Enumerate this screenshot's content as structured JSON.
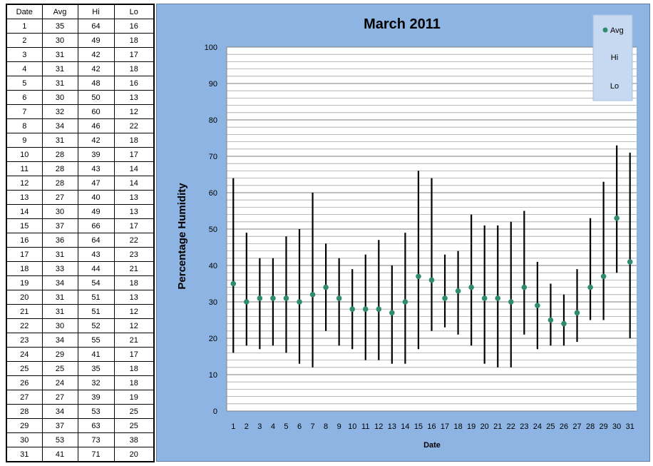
{
  "table": {
    "headers": [
      "Date",
      "Avg",
      "Hi",
      "Lo"
    ],
    "rows": [
      [
        "1",
        "35",
        "64",
        "16"
      ],
      [
        "2",
        "30",
        "49",
        "18"
      ],
      [
        "3",
        "31",
        "42",
        "17"
      ],
      [
        "4",
        "31",
        "42",
        "18"
      ],
      [
        "5",
        "31",
        "48",
        "16"
      ],
      [
        "6",
        "30",
        "50",
        "13"
      ],
      [
        "7",
        "32",
        "60",
        "12"
      ],
      [
        "8",
        "34",
        "46",
        "22"
      ],
      [
        "9",
        "31",
        "42",
        "18"
      ],
      [
        "10",
        "28",
        "39",
        "17"
      ],
      [
        "11",
        "28",
        "43",
        "14"
      ],
      [
        "12",
        "28",
        "47",
        "14"
      ],
      [
        "13",
        "27",
        "40",
        "13"
      ],
      [
        "14",
        "30",
        "49",
        "13"
      ],
      [
        "15",
        "37",
        "66",
        "17"
      ],
      [
        "16",
        "36",
        "64",
        "22"
      ],
      [
        "17",
        "31",
        "43",
        "23"
      ],
      [
        "18",
        "33",
        "44",
        "21"
      ],
      [
        "19",
        "34",
        "54",
        "18"
      ],
      [
        "20",
        "31",
        "51",
        "13"
      ],
      [
        "21",
        "31",
        "51",
        "12"
      ],
      [
        "22",
        "30",
        "52",
        "12"
      ],
      [
        "23",
        "34",
        "55",
        "21"
      ],
      [
        "24",
        "29",
        "41",
        "17"
      ],
      [
        "25",
        "25",
        "35",
        "18"
      ],
      [
        "26",
        "24",
        "32",
        "18"
      ],
      [
        "27",
        "27",
        "39",
        "19"
      ],
      [
        "28",
        "34",
        "53",
        "25"
      ],
      [
        "29",
        "37",
        "63",
        "25"
      ],
      [
        "30",
        "53",
        "73",
        "38"
      ],
      [
        "31",
        "41",
        "71",
        "20"
      ]
    ]
  },
  "chart_data": {
    "type": "scatter",
    "title": "March 2011",
    "xlabel": "Date",
    "ylabel": "Percentage Humidity",
    "categories": [
      "1",
      "2",
      "3",
      "4",
      "5",
      "6",
      "7",
      "8",
      "9",
      "10",
      "11",
      "12",
      "13",
      "14",
      "15",
      "16",
      "17",
      "18",
      "19",
      "20",
      "21",
      "22",
      "23",
      "24",
      "25",
      "26",
      "27",
      "28",
      "29",
      "30",
      "31"
    ],
    "ylim": [
      0,
      100
    ],
    "yticks": [
      0,
      10,
      20,
      30,
      40,
      50,
      60,
      70,
      80,
      90,
      100
    ],
    "grid": true,
    "legend": {
      "placement": "top-right",
      "entries": [
        "Avg",
        "Hi",
        "Lo"
      ]
    },
    "series": [
      {
        "name": "Avg",
        "values": [
          35,
          30,
          31,
          31,
          31,
          30,
          32,
          34,
          31,
          28,
          28,
          28,
          27,
          30,
          37,
          36,
          31,
          33,
          34,
          31,
          31,
          30,
          34,
          29,
          25,
          24,
          27,
          34,
          37,
          53,
          41
        ]
      },
      {
        "name": "Hi",
        "values": [
          64,
          49,
          42,
          42,
          48,
          50,
          60,
          46,
          42,
          39,
          43,
          47,
          40,
          49,
          66,
          64,
          43,
          44,
          54,
          51,
          51,
          52,
          55,
          41,
          35,
          32,
          39,
          53,
          63,
          73,
          71
        ]
      },
      {
        "name": "Lo",
        "values": [
          16,
          18,
          17,
          18,
          16,
          13,
          12,
          22,
          18,
          17,
          14,
          14,
          13,
          13,
          17,
          22,
          23,
          21,
          18,
          13,
          12,
          12,
          21,
          17,
          18,
          18,
          19,
          25,
          25,
          38,
          20
        ]
      }
    ],
    "colors": {
      "avg_marker": "#2e8b6e",
      "hilo_line": "#000000",
      "plot_bg": "#ffffff",
      "chart_bg": "#8eb4e3",
      "legend_bg": "#c6d9f1"
    }
  }
}
